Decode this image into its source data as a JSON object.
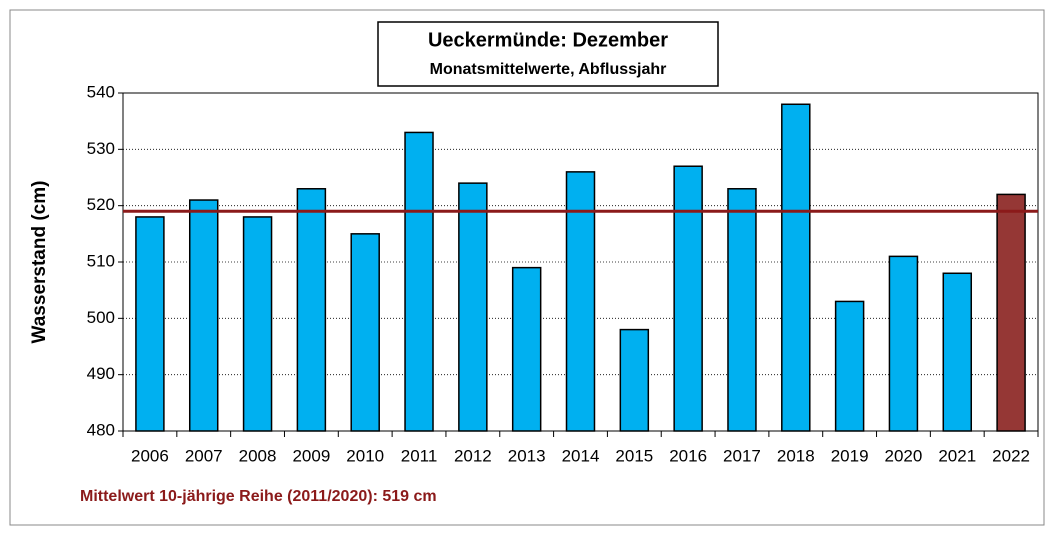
{
  "chart_data": {
    "type": "bar",
    "title": "Ueckermünde: Dezember",
    "subtitle": "Monatsmittelwerte, Abflussjahr",
    "y_label": "Wasserstand (cm)",
    "categories": [
      "2006",
      "2007",
      "2008",
      "2009",
      "2010",
      "2011",
      "2012",
      "2013",
      "2014",
      "2015",
      "2016",
      "2017",
      "2018",
      "2019",
      "2020",
      "2021",
      "2022"
    ],
    "values": [
      518,
      521,
      518,
      523,
      515,
      533,
      524,
      509,
      526,
      498,
      527,
      523,
      538,
      503,
      511,
      508,
      522
    ],
    "colors": [
      "#00b0f0",
      "#00b0f0",
      "#00b0f0",
      "#00b0f0",
      "#00b0f0",
      "#00b0f0",
      "#00b0f0",
      "#00b0f0",
      "#00b0f0",
      "#00b0f0",
      "#00b0f0",
      "#00b0f0",
      "#00b0f0",
      "#00b0f0",
      "#00b0f0",
      "#00b0f0",
      "#953735"
    ],
    "mean_line": {
      "value": 519,
      "color": "#8b1a1a"
    },
    "annotation": "Mittelwert 10-jährige Reihe (2011/2020): 519 cm",
    "ylim": [
      480,
      540
    ],
    "yticks": [
      480,
      490,
      500,
      510,
      520,
      530,
      540
    ],
    "grid": true
  }
}
